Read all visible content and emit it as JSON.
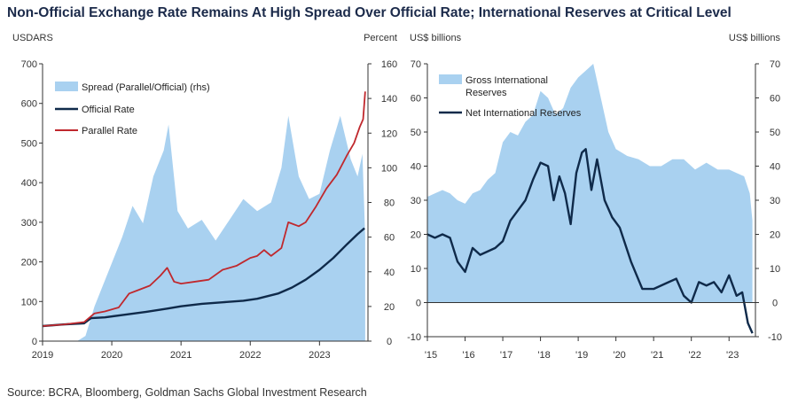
{
  "title": "Non-Official Exchange Rate Remains At High Spread Over Official Rate; International Reserves at Critical Level",
  "source": "Source: BCRA, Bloomberg, Goldman Sachs Global Investment Research",
  "colors": {
    "navy": "#0f2a4a",
    "red": "#c0282d",
    "light_blue": "#a9d1f0"
  },
  "chart_data": [
    {
      "type": "line",
      "left_unit": "USDARS",
      "right_unit": "Percent",
      "ylim_left": [
        0,
        700
      ],
      "ylim_right": [
        0,
        160
      ],
      "yticks_left": [
        "0",
        "100",
        "200",
        "300",
        "400",
        "500",
        "600",
        "700"
      ],
      "yticks_right": [
        "0",
        "20",
        "40",
        "60",
        "80",
        "100",
        "120",
        "140",
        "160"
      ],
      "xlim": [
        2019.0,
        2023.7
      ],
      "xticks": [
        {
          "label": "2019",
          "x": 2019
        },
        {
          "label": "2020",
          "x": 2020
        },
        {
          "label": "2021",
          "x": 2021
        },
        {
          "label": "2022",
          "x": 2022
        },
        {
          "label": "2023",
          "x": 2023
        }
      ],
      "series": [
        {
          "name": "Spread (Parallel/Official) (rhs)",
          "kind": "area",
          "axis": "right",
          "x": [
            2019.0,
            2019.5,
            2019.62,
            2019.75,
            2019.95,
            2020.15,
            2020.3,
            2020.45,
            2020.6,
            2020.75,
            2020.82,
            2020.95,
            2021.1,
            2021.3,
            2021.5,
            2021.7,
            2021.9,
            2022.1,
            2022.3,
            2022.45,
            2022.55,
            2022.7,
            2022.85,
            2023.0,
            2023.15,
            2023.3,
            2023.45,
            2023.55,
            2023.62,
            2023.66
          ],
          "y": [
            0,
            0,
            3,
            20,
            40,
            60,
            78,
            68,
            95,
            110,
            125,
            75,
            65,
            70,
            58,
            70,
            82,
            75,
            80,
            100,
            130,
            95,
            82,
            85,
            110,
            130,
            105,
            95,
            108,
            60
          ]
        },
        {
          "name": "Official Rate",
          "kind": "line",
          "axis": "left",
          "x": [
            2019.0,
            2019.3,
            2019.6,
            2019.7,
            2019.9,
            2020.2,
            2020.5,
            2020.8,
            2021.0,
            2021.3,
            2021.6,
            2021.9,
            2022.1,
            2022.4,
            2022.6,
            2022.8,
            2023.0,
            2023.2,
            2023.4,
            2023.55,
            2023.65
          ],
          "y": [
            38,
            42,
            45,
            58,
            60,
            67,
            74,
            82,
            88,
            94,
            98,
            102,
            107,
            120,
            135,
            155,
            180,
            210,
            245,
            270,
            285
          ]
        },
        {
          "name": "Parallel Rate",
          "kind": "line",
          "axis": "left",
          "x": [
            2019.0,
            2019.3,
            2019.6,
            2019.75,
            2019.9,
            2020.1,
            2020.25,
            2020.4,
            2020.55,
            2020.7,
            2020.8,
            2020.9,
            2021.0,
            2021.2,
            2021.4,
            2021.6,
            2021.8,
            2021.9,
            2022.0,
            2022.1,
            2022.2,
            2022.3,
            2022.45,
            2022.55,
            2022.7,
            2022.8,
            2022.95,
            2023.1,
            2023.25,
            2023.4,
            2023.5,
            2023.58,
            2023.63,
            2023.66
          ],
          "y": [
            38,
            42,
            48,
            70,
            75,
            85,
            120,
            130,
            140,
            165,
            185,
            150,
            145,
            150,
            155,
            180,
            190,
            200,
            210,
            215,
            230,
            215,
            235,
            300,
            290,
            300,
            340,
            385,
            420,
            470,
            500,
            540,
            560,
            630
          ]
        }
      ]
    },
    {
      "type": "area",
      "left_unit": "US$ billions",
      "right_unit": "US$ billions",
      "ylim": [
        -10,
        70
      ],
      "yticks": [
        "-10",
        "0",
        "10",
        "20",
        "30",
        "40",
        "50",
        "60",
        "70"
      ],
      "xlim": [
        2015.0,
        2023.7
      ],
      "xticks": [
        {
          "label": "'15",
          "x": 2015
        },
        {
          "label": "'16",
          "x": 2016
        },
        {
          "label": "'17",
          "x": 2017
        },
        {
          "label": "'18",
          "x": 2018
        },
        {
          "label": "'19",
          "x": 2019
        },
        {
          "label": "'20",
          "x": 2020
        },
        {
          "label": "'21",
          "x": 2021
        },
        {
          "label": "'22",
          "x": 2022
        },
        {
          "label": "'23",
          "x": 2023
        }
      ],
      "series": [
        {
          "name": "Gross International\nReserves",
          "kind": "area",
          "x": [
            2015.0,
            2015.2,
            2015.4,
            2015.6,
            2015.8,
            2016.0,
            2016.2,
            2016.4,
            2016.6,
            2016.8,
            2017.0,
            2017.2,
            2017.4,
            2017.6,
            2017.8,
            2018.0,
            2018.2,
            2018.4,
            2018.6,
            2018.8,
            2019.0,
            2019.2,
            2019.4,
            2019.6,
            2019.8,
            2020.0,
            2020.3,
            2020.6,
            2020.9,
            2021.2,
            2021.5,
            2021.8,
            2022.1,
            2022.4,
            2022.7,
            2023.0,
            2023.2,
            2023.4,
            2023.55,
            2023.62
          ],
          "y": [
            31,
            32,
            33,
            32,
            30,
            29,
            32,
            33,
            36,
            38,
            47,
            50,
            49,
            53,
            55,
            62,
            60,
            55,
            57,
            63,
            66,
            68,
            70,
            60,
            50,
            45,
            43,
            42,
            40,
            40,
            42,
            42,
            39,
            41,
            39,
            39,
            38,
            37,
            32,
            24
          ]
        },
        {
          "name": "Net International Reserves",
          "kind": "line",
          "x": [
            2015.0,
            2015.2,
            2015.4,
            2015.6,
            2015.8,
            2016.0,
            2016.2,
            2016.4,
            2016.6,
            2016.8,
            2017.0,
            2017.2,
            2017.4,
            2017.6,
            2017.8,
            2018.0,
            2018.2,
            2018.35,
            2018.5,
            2018.65,
            2018.8,
            2018.95,
            2019.1,
            2019.2,
            2019.35,
            2019.5,
            2019.7,
            2019.9,
            2020.1,
            2020.4,
            2020.7,
            2021.0,
            2021.2,
            2021.4,
            2021.6,
            2021.8,
            2022.0,
            2022.2,
            2022.4,
            2022.6,
            2022.8,
            2023.0,
            2023.2,
            2023.35,
            2023.5,
            2023.62
          ],
          "y": [
            20,
            19,
            20,
            19,
            12,
            9,
            16,
            14,
            15,
            16,
            18,
            24,
            27,
            30,
            36,
            41,
            40,
            30,
            37,
            32,
            23,
            38,
            44,
            45,
            33,
            42,
            30,
            25,
            22,
            12,
            4,
            4,
            5,
            6,
            7,
            2,
            0,
            6,
            5,
            6,
            3,
            8,
            2,
            3,
            -6,
            -9
          ]
        }
      ]
    }
  ]
}
